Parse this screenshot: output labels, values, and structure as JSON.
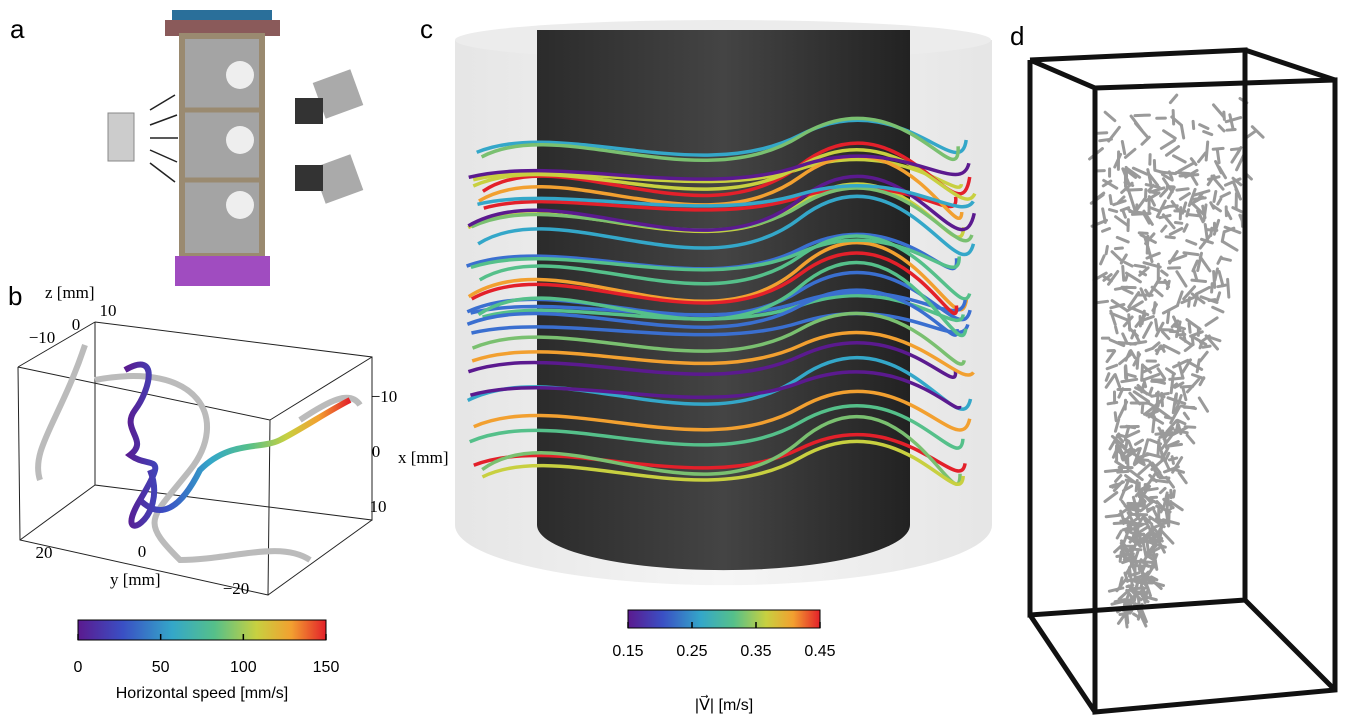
{
  "panels": [
    {
      "label": "a"
    },
    {
      "label": "b"
    },
    {
      "label": "c"
    },
    {
      "label": "d"
    }
  ],
  "panel_b": {
    "axis_labels": {
      "z": "z [mm]",
      "x": "x [mm]",
      "y": "y [mm]"
    },
    "z_ticks": [
      {
        "value": -10,
        "label": "−10"
      },
      0,
      10
    ],
    "x_ticks": [
      {
        "value": -10,
        "label": "−10"
      },
      0,
      10
    ],
    "y_ticks": [
      20,
      0,
      {
        "value": -20,
        "label": "−20"
      }
    ],
    "colorbar": {
      "label": "Horizontal speed [mm/s]",
      "lim": [
        0,
        150
      ],
      "ticks": [
        0,
        50,
        100,
        150
      ]
    }
  },
  "panel_c": {
    "colorbar": {
      "label": "|V⃗| [m/s]",
      "lim": [
        0.15,
        0.45
      ],
      "ticks": [
        0.15,
        0.25,
        0.35,
        0.45
      ]
    }
  }
}
